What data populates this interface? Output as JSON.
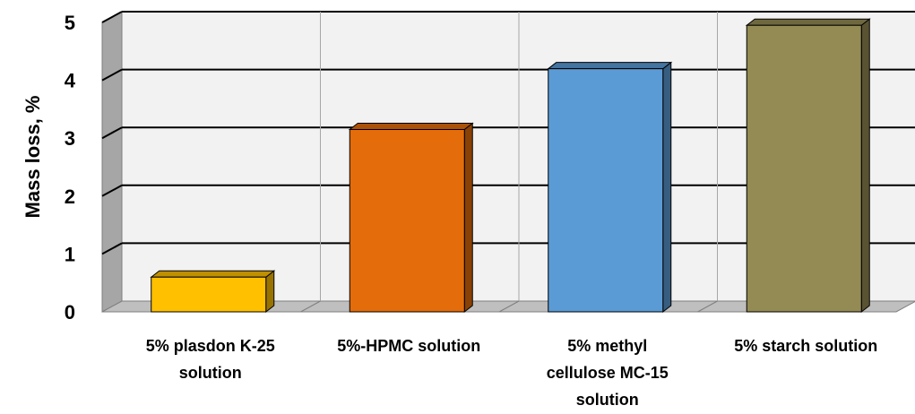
{
  "chart_data": {
    "type": "bar",
    "title": "",
    "xlabel": "",
    "ylabel": "Mass loss, %",
    "ylim": [
      0,
      5
    ],
    "yticks": [
      0,
      1,
      2,
      3,
      4,
      5
    ],
    "grid": true,
    "legend": "none",
    "three_d": true,
    "categories": [
      [
        "5% plasdon  K-25",
        "solution"
      ],
      [
        "5%-HPMC solution"
      ],
      [
        "5% methyl",
        "cellulose MC-15",
        "solution"
      ],
      [
        "5% starch solution"
      ]
    ],
    "values": [
      0.6,
      3.15,
      4.2,
      4.95
    ],
    "colors": [
      "#FFC000",
      "#E46C0A",
      "#5B9BD5",
      "#948A54"
    ]
  }
}
